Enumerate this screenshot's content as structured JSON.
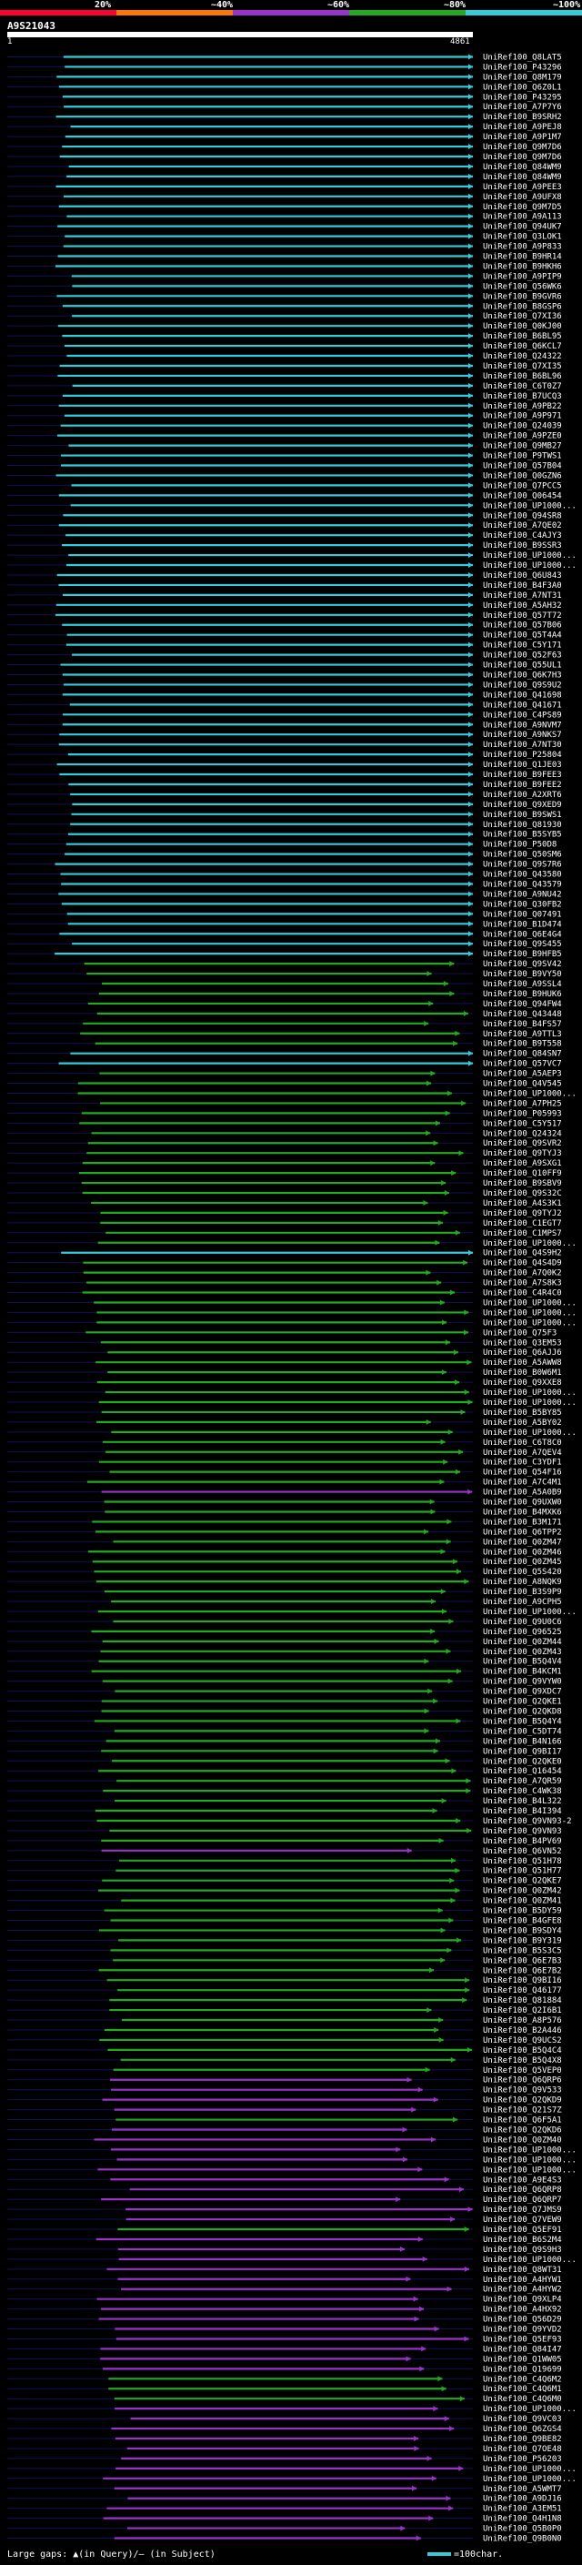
{
  "legend": {
    "labels": [
      "20%",
      "~40%",
      "~60%",
      "~80%",
      "~100%"
    ],
    "colors": [
      "#ff0033",
      "#ff7700",
      "#9933cc",
      "#22aa22",
      "#33ccdd"
    ]
  },
  "query": {
    "id": "A9S21043",
    "start": "1",
    "end": "4861"
  },
  "hits": [
    {
      "id": "UniRef100_Q8LAT5",
      "c": 4
    },
    {
      "id": "UniRef100_P43296",
      "c": 4
    },
    {
      "id": "UniRef100_Q8M179",
      "c": 4
    },
    {
      "id": "UniRef100_Q6Z0L1",
      "c": 4
    },
    {
      "id": "UniRef100_P43295",
      "c": 4
    },
    {
      "id": "UniRef100_A7P7Y6",
      "c": 4
    },
    {
      "id": "UniRef100_B9SRH2",
      "c": 4
    },
    {
      "id": "UniRef100_A9PEJ8",
      "c": 4
    },
    {
      "id": "UniRef100_A9P1M7",
      "c": 4
    },
    {
      "id": "UniRef100_Q9M7D6",
      "c": 4
    },
    {
      "id": "UniRef100_Q9M7D6",
      "c": 4
    },
    {
      "id": "UniRef100_Q84WM9",
      "c": 4
    },
    {
      "id": "UniRef100_Q84WM9",
      "c": 4
    },
    {
      "id": "UniRef100_A9PEE3",
      "c": 4
    },
    {
      "id": "UniRef100_A9UFX8",
      "c": 4
    },
    {
      "id": "UniRef100_Q9M7D5",
      "c": 4
    },
    {
      "id": "UniRef100_A9A113",
      "c": 4
    },
    {
      "id": "UniRef100_Q94UK7",
      "c": 4
    },
    {
      "id": "UniRef100_Q3LOK1",
      "c": 4
    },
    {
      "id": "UniRef100_A9P833",
      "c": 4
    },
    {
      "id": "UniRef100_B9HR14",
      "c": 4
    },
    {
      "id": "UniRef100_B9HKH6",
      "c": 4
    },
    {
      "id": "UniRef100_A9PIP9",
      "c": 4
    },
    {
      "id": "UniRef100_Q56WK6",
      "c": 4
    },
    {
      "id": "UniRef100_B9GVR6",
      "c": 4
    },
    {
      "id": "UniRef100_B8GSP6",
      "c": 4
    },
    {
      "id": "UniRef100_Q7XI36",
      "c": 4
    },
    {
      "id": "UniRef100_Q0KJ00",
      "c": 4
    },
    {
      "id": "UniRef100_B6BL95",
      "c": 4
    },
    {
      "id": "UniRef100_Q6KCL7",
      "c": 4
    },
    {
      "id": "UniRef100_Q24322",
      "c": 4
    },
    {
      "id": "UniRef100_Q7XI35",
      "c": 4
    },
    {
      "id": "UniRef100_B6BL96",
      "c": 4
    },
    {
      "id": "UniRef100_C6T0Z7",
      "c": 4
    },
    {
      "id": "UniRef100_B7UCQ3",
      "c": 4
    },
    {
      "id": "UniRef100_A9PB22",
      "c": 4
    },
    {
      "id": "UniRef100_A9P971",
      "c": 4
    },
    {
      "id": "UniRef100_Q24039",
      "c": 4
    },
    {
      "id": "UniRef100_A9PZE0",
      "c": 4
    },
    {
      "id": "UniRef100_Q9MB27",
      "c": 4
    },
    {
      "id": "UniRef100_P9TWS1",
      "c": 4
    },
    {
      "id": "UniRef100_Q57B04",
      "c": 4
    },
    {
      "id": "UniRef100_Q0GZN6",
      "c": 4
    },
    {
      "id": "UniRef100_Q7PCC5",
      "c": 4
    },
    {
      "id": "UniRef100_Q06454",
      "c": 4
    },
    {
      "id": "UniRef100_UP1000...",
      "c": 4
    },
    {
      "id": "UniRef100_Q94SR8",
      "c": 4
    },
    {
      "id": "UniRef100_A7QE02",
      "c": 4
    },
    {
      "id": "UniRef100_C4AJY3",
      "c": 4
    },
    {
      "id": "UniRef100_B9SSR3",
      "c": 4
    },
    {
      "id": "UniRef100_UP1000...",
      "c": 4
    },
    {
      "id": "UniRef100_UP1000...",
      "c": 4
    },
    {
      "id": "UniRef100_Q6U843",
      "c": 4
    },
    {
      "id": "UniRef100_B4F3A0",
      "c": 4
    },
    {
      "id": "UniRef100_A7NT31",
      "c": 4
    },
    {
      "id": "UniRef100_A5AH32",
      "c": 4
    },
    {
      "id": "UniRef100_Q57T72",
      "c": 4
    },
    {
      "id": "UniRef100_Q57B06",
      "c": 4
    },
    {
      "id": "UniRef100_Q5T4A4",
      "c": 4
    },
    {
      "id": "UniRef100_C5Y171",
      "c": 4
    },
    {
      "id": "UniRef100_Q52F63",
      "c": 4
    },
    {
      "id": "UniRef100_Q55UL1",
      "c": 4
    },
    {
      "id": "UniRef100_Q6K7H3",
      "c": 4
    },
    {
      "id": "UniRef100_Q9S9U2",
      "c": 4
    },
    {
      "id": "UniRef100_Q41698",
      "c": 4
    },
    {
      "id": "UniRef100_Q41671",
      "c": 4
    },
    {
      "id": "UniRef100_C4PS89",
      "c": 4
    },
    {
      "id": "UniRef100_A9NVM7",
      "c": 4
    },
    {
      "id": "UniRef100_A9NKS7",
      "c": 4
    },
    {
      "id": "UniRef100_A7NT30",
      "c": 4
    },
    {
      "id": "UniRef100_P25804",
      "c": 4
    },
    {
      "id": "UniRef100_Q1JE03",
      "c": 4
    },
    {
      "id": "UniRef100_B9FEE3",
      "c": 4
    },
    {
      "id": "UniRef100_B9FEE2",
      "c": 4
    },
    {
      "id": "UniRef100_A2XRT6",
      "c": 4
    },
    {
      "id": "UniRef100_Q9XED9",
      "c": 4
    },
    {
      "id": "UniRef100_B9SWS1",
      "c": 4
    },
    {
      "id": "UniRef100_Q81930",
      "c": 4
    },
    {
      "id": "UniRef100_B5SYB5",
      "c": 4
    },
    {
      "id": "UniRef100_P50D8",
      "c": 4
    },
    {
      "id": "UniRef100_Q50SM6",
      "c": 4
    },
    {
      "id": "UniRef100_Q9S7R6",
      "c": 4
    },
    {
      "id": "UniRef100_Q43580",
      "c": 4
    },
    {
      "id": "UniRef100_Q43579",
      "c": 4
    },
    {
      "id": "UniRef100_A9NU42",
      "c": 4
    },
    {
      "id": "UniRef100_Q30FB2",
      "c": 4
    },
    {
      "id": "UniRef100_Q07491",
      "c": 4
    },
    {
      "id": "UniRef100_B1D474",
      "c": 4
    },
    {
      "id": "UniRef100_Q6E4G4",
      "c": 4
    },
    {
      "id": "UniRef100_Q9S455",
      "c": 4
    },
    {
      "id": "UniRef100_B9HFB5",
      "c": 4
    },
    {
      "id": "UniRef100_Q9SV42",
      "c": 3
    },
    {
      "id": "UniRef100_B9VY50",
      "c": 3
    },
    {
      "id": "UniRef100_A9SSL4",
      "c": 3
    },
    {
      "id": "UniRef100_B9HUK6",
      "c": 3
    },
    {
      "id": "UniRef100_Q94FW4",
      "c": 3
    },
    {
      "id": "UniRef100_Q43448",
      "c": 3
    },
    {
      "id": "UniRef100_B4FS57",
      "c": 3
    },
    {
      "id": "UniRef100_A9TTL3",
      "c": 3
    },
    {
      "id": "UniRef100_B9T558",
      "c": 3
    },
    {
      "id": "UniRef100_Q84SN7",
      "c": 4
    },
    {
      "id": "UniRef100_Q57VC7",
      "c": 4
    },
    {
      "id": "UniRef100_A5AEP3",
      "c": 3
    },
    {
      "id": "UniRef100_Q4V545",
      "c": 3
    },
    {
      "id": "UniRef100_UP1000...",
      "c": 3
    },
    {
      "id": "UniRef100_A7PH25",
      "c": 3
    },
    {
      "id": "UniRef100_P05993",
      "c": 3
    },
    {
      "id": "UniRef100_C5Y517",
      "c": 3
    },
    {
      "id": "UniRef100_Q24324",
      "c": 3
    },
    {
      "id": "UniRef100_Q9SVR2",
      "c": 3
    },
    {
      "id": "UniRef100_Q9TYJ3",
      "c": 3
    },
    {
      "id": "UniRef100_A9SXG1",
      "c": 3
    },
    {
      "id": "UniRef100_Q10FF9",
      "c": 3
    },
    {
      "id": "UniRef100_B9SBV9",
      "c": 3
    },
    {
      "id": "UniRef100_Q9S32C",
      "c": 3
    },
    {
      "id": "UniRef100_A4S3K1",
      "c": 3
    },
    {
      "id": "UniRef100_Q9TYJ2",
      "c": 3
    },
    {
      "id": "UniRef100_C1EGT7",
      "c": 3
    },
    {
      "id": "UniRef100_C1MPS7",
      "c": 3
    },
    {
      "id": "UniRef100_UP1000...",
      "c": 3
    },
    {
      "id": "UniRef100_Q4S9H2",
      "c": 4
    },
    {
      "id": "UniRef100_Q4S4D9",
      "c": 3
    },
    {
      "id": "UniRef100_A7Q0K2",
      "c": 3
    },
    {
      "id": "UniRef100_A7S8K3",
      "c": 3
    },
    {
      "id": "UniRef100_C4R4C0",
      "c": 3
    },
    {
      "id": "UniRef100_UP1000...",
      "c": 3
    },
    {
      "id": "UniRef100_UP1000...",
      "c": 3
    },
    {
      "id": "UniRef100_UP1000...",
      "c": 3
    },
    {
      "id": "UniRef100_Q75F3",
      "c": 3
    },
    {
      "id": "UniRef100_Q3EM53",
      "c": 3
    },
    {
      "id": "UniRef100_Q6AJJ6",
      "c": 3
    },
    {
      "id": "UniRef100_A5AWW8",
      "c": 3
    },
    {
      "id": "UniRef100_B0W6M1",
      "c": 3
    },
    {
      "id": "UniRef100_Q9XXE8",
      "c": 3
    },
    {
      "id": "UniRef100_UP1000...",
      "c": 3
    },
    {
      "id": "UniRef100_UP1000...",
      "c": 3
    },
    {
      "id": "UniRef100_B5BY85",
      "c": 3
    },
    {
      "id": "UniRef100_A5BY02",
      "c": 3
    },
    {
      "id": "UniRef100_UP1000...",
      "c": 3
    },
    {
      "id": "UniRef100_C6T8C0",
      "c": 3
    },
    {
      "id": "UniRef100_A7QEV4",
      "c": 3
    },
    {
      "id": "UniRef100_C3YDF1",
      "c": 3
    },
    {
      "id": "UniRef100_Q54F16",
      "c": 3
    },
    {
      "id": "UniRef100_A7C4M1",
      "c": 3
    },
    {
      "id": "UniRef100_A5A0B9",
      "c": 2
    },
    {
      "id": "UniRef100_Q9UXW0",
      "c": 3
    },
    {
      "id": "UniRef100_B4MXK6",
      "c": 3
    },
    {
      "id": "UniRef100_B3M171",
      "c": 3
    },
    {
      "id": "UniRef100_Q6TPP2",
      "c": 3
    },
    {
      "id": "UniRef100_Q0ZM47",
      "c": 3
    },
    {
      "id": "UniRef100_Q0ZM46",
      "c": 3
    },
    {
      "id": "UniRef100_Q0ZM45",
      "c": 3
    },
    {
      "id": "UniRef100_Q5S420",
      "c": 3
    },
    {
      "id": "UniRef100_A8NQK9",
      "c": 3
    },
    {
      "id": "UniRef100_B3S9P9",
      "c": 3
    },
    {
      "id": "UniRef100_A9CPH5",
      "c": 3
    },
    {
      "id": "UniRef100_UP1000...",
      "c": 3
    },
    {
      "id": "UniRef100_Q9U0C6",
      "c": 3
    },
    {
      "id": "UniRef100_Q96525",
      "c": 3
    },
    {
      "id": "UniRef100_Q0ZM44",
      "c": 3
    },
    {
      "id": "UniRef100_Q0ZM43",
      "c": 3
    },
    {
      "id": "UniRef100_B5Q4V4",
      "c": 3
    },
    {
      "id": "UniRef100_B4KCM1",
      "c": 3
    },
    {
      "id": "UniRef100_Q9VYW0",
      "c": 3
    },
    {
      "id": "UniRef100_Q9XDC7",
      "c": 3
    },
    {
      "id": "UniRef100_Q2QKE1",
      "c": 3
    },
    {
      "id": "UniRef100_Q2QKD8",
      "c": 3
    },
    {
      "id": "UniRef100_B5Q4Y4",
      "c": 3
    },
    {
      "id": "UniRef100_C5DT74",
      "c": 3
    },
    {
      "id": "UniRef100_B4N166",
      "c": 3
    },
    {
      "id": "UniRef100_Q9BI17",
      "c": 3
    },
    {
      "id": "UniRef100_Q2QKE0",
      "c": 3
    },
    {
      "id": "UniRef100_Q16454",
      "c": 3
    },
    {
      "id": "UniRef100_A7QR59",
      "c": 3
    },
    {
      "id": "UniRef100_C4WK38",
      "c": 3
    },
    {
      "id": "UniRef100_B4L322",
      "c": 3
    },
    {
      "id": "UniRef100_B4I394",
      "c": 3
    },
    {
      "id": "UniRef100_Q9VN93-2",
      "c": 3
    },
    {
      "id": "UniRef100_Q9VN93",
      "c": 3
    },
    {
      "id": "UniRef100_B4PV69",
      "c": 3
    },
    {
      "id": "UniRef100_Q6VN52",
      "c": 2
    },
    {
      "id": "UniRef100_Q51H78",
      "c": 3
    },
    {
      "id": "UniRef100_Q51H77",
      "c": 3
    },
    {
      "id": "UniRef100_Q2QKE7",
      "c": 3
    },
    {
      "id": "UniRef100_Q0ZM42",
      "c": 3
    },
    {
      "id": "UniRef100_Q0ZM41",
      "c": 3
    },
    {
      "id": "UniRef100_B5DY59",
      "c": 3
    },
    {
      "id": "UniRef100_B4GFE8",
      "c": 3
    },
    {
      "id": "UniRef100_B9SDY4",
      "c": 3
    },
    {
      "id": "UniRef100_B9Y319",
      "c": 3
    },
    {
      "id": "UniRef100_B5S3C5",
      "c": 3
    },
    {
      "id": "UniRef100_Q6E7B3",
      "c": 3
    },
    {
      "id": "UniRef100_Q6E7B2",
      "c": 3
    },
    {
      "id": "UniRef100_Q9BI16",
      "c": 3
    },
    {
      "id": "UniRef100_Q46177",
      "c": 3
    },
    {
      "id": "UniRef100_Q81884",
      "c": 3
    },
    {
      "id": "UniRef100_Q2I6B1",
      "c": 3
    },
    {
      "id": "UniRef100_A8P576",
      "c": 3
    },
    {
      "id": "UniRef100_B2A446",
      "c": 3
    },
    {
      "id": "UniRef100_Q9UCS2",
      "c": 3
    },
    {
      "id": "UniRef100_B5Q4C4",
      "c": 3
    },
    {
      "id": "UniRef100_B5Q4X8",
      "c": 3
    },
    {
      "id": "UniRef100_Q5VEP0",
      "c": 3
    },
    {
      "id": "UniRef100_Q6QRP6",
      "c": 2
    },
    {
      "id": "UniRef100_Q9V533",
      "c": 2
    },
    {
      "id": "UniRef100_Q2QKD9",
      "c": 2
    },
    {
      "id": "UniRef100_Q21S7Z",
      "c": 2
    },
    {
      "id": "UniRef100_Q6F5A1",
      "c": 3
    },
    {
      "id": "UniRef100_Q2QKD6",
      "c": 2
    },
    {
      "id": "UniRef100_Q0ZM40",
      "c": 2
    },
    {
      "id": "UniRef100_UP1000...",
      "c": 2
    },
    {
      "id": "UniRef100_UP1000...",
      "c": 2
    },
    {
      "id": "UniRef100_UP1000...",
      "c": 2
    },
    {
      "id": "UniRef100_A9E4S3",
      "c": 2
    },
    {
      "id": "UniRef100_Q6QRP8",
      "c": 2
    },
    {
      "id": "UniRef100_Q6QRP7",
      "c": 2
    },
    {
      "id": "UniRef100_Q7JMS9",
      "c": 2
    },
    {
      "id": "UniRef100_Q7VEW9",
      "c": 2
    },
    {
      "id": "UniRef100_Q5EF91",
      "c": 3
    },
    {
      "id": "UniRef100_B6S2M4",
      "c": 2
    },
    {
      "id": "UniRef100_Q9S9H3",
      "c": 2
    },
    {
      "id": "UniRef100_UP1000...",
      "c": 2
    },
    {
      "id": "UniRef100_Q8WT31",
      "c": 2
    },
    {
      "id": "UniRef100_A4HYW1",
      "c": 2
    },
    {
      "id": "UniRef100_A4HYW2",
      "c": 2
    },
    {
      "id": "UniRef100_Q9XLP4",
      "c": 2
    },
    {
      "id": "UniRef100_A4HX92",
      "c": 2
    },
    {
      "id": "UniRef100_Q56D29",
      "c": 2
    },
    {
      "id": "UniRef100_Q9YVD2",
      "c": 2
    },
    {
      "id": "UniRef100_Q5EF93",
      "c": 2
    },
    {
      "id": "UniRef100_Q84I47",
      "c": 2
    },
    {
      "id": "UniRef100_Q1WW05",
      "c": 2
    },
    {
      "id": "UniRef100_Q19699",
      "c": 2
    },
    {
      "id": "UniRef100_C4Q6M2",
      "c": 3
    },
    {
      "id": "UniRef100_C4Q6M1",
      "c": 3
    },
    {
      "id": "UniRef100_C4Q6M0",
      "c": 3
    },
    {
      "id": "UniRef100_UP1000...",
      "c": 2
    },
    {
      "id": "UniRef100_Q9VC03",
      "c": 2
    },
    {
      "id": "UniRef100_Q6ZGS4",
      "c": 2
    },
    {
      "id": "UniRef100_Q9BE82",
      "c": 2
    },
    {
      "id": "UniRef100_Q7OE48",
      "c": 2
    },
    {
      "id": "UniRef100_P56203",
      "c": 2
    },
    {
      "id": "UniRef100_UP1000...",
      "c": 2
    },
    {
      "id": "UniRef100_UP1000...",
      "c": 2
    },
    {
      "id": "UniRef100_A5WMT7",
      "c": 2
    },
    {
      "id": "UniRef100_A9DJ16",
      "c": 2
    },
    {
      "id": "UniRef100_A3EM51",
      "c": 2
    },
    {
      "id": "UniRef100_Q4H1N8",
      "c": 2
    },
    {
      "id": "UniRef100_Q5B0P0",
      "c": 2
    },
    {
      "id": "UniRef100_Q9B0N0",
      "c": 2
    }
  ],
  "footer": {
    "text": "Large gaps: ▲(in Query)/– (in Subject)",
    "scale": "=100char."
  }
}
